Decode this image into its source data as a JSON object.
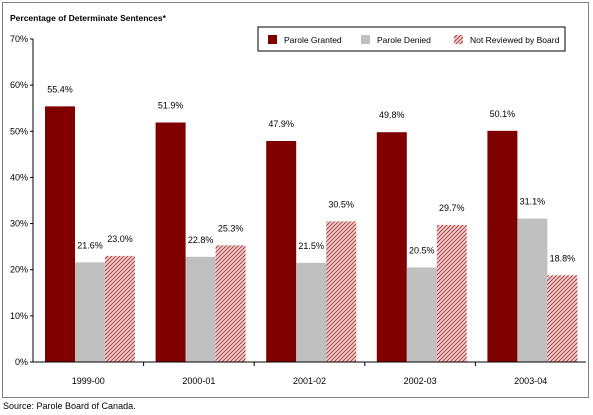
{
  "chart_data": {
    "type": "bar",
    "ylabel": "Percentage of Determinate Sentences*",
    "categories": [
      "1999-00",
      "2000-01",
      "2001-02",
      "2002-03",
      "2003-04"
    ],
    "ylim": [
      0,
      70
    ],
    "yticks": [
      "0%",
      "10%",
      "20%",
      "30%",
      "40%",
      "50%",
      "60%",
      "70%"
    ],
    "grid": false,
    "legend": "top-right",
    "series": [
      {
        "name": "Parole Granted",
        "values": [
          55.4,
          51.9,
          47.9,
          49.8,
          50.1
        ],
        "labels": [
          "55.4%",
          "51.9%",
          "47.9%",
          "49.8%",
          "50.1%"
        ],
        "color": "#800000",
        "fill": "solid"
      },
      {
        "name": "Parole Denied",
        "values": [
          21.6,
          22.8,
          21.5,
          20.5,
          31.1
        ],
        "labels": [
          "21.6%",
          "22.8%",
          "21.5%",
          "20.5%",
          "31.1%"
        ],
        "color": "#c0c0c0",
        "fill": "solid"
      },
      {
        "name": "Not Reviewed by Board",
        "values": [
          23.0,
          25.3,
          30.5,
          29.7,
          18.8
        ],
        "labels": [
          "23.0%",
          "25.3%",
          "30.5%",
          "29.7%",
          "18.8%"
        ],
        "color": "#c0504d",
        "fill": "hatched"
      }
    ]
  },
  "source": "Source:  Parole Board of Canada."
}
